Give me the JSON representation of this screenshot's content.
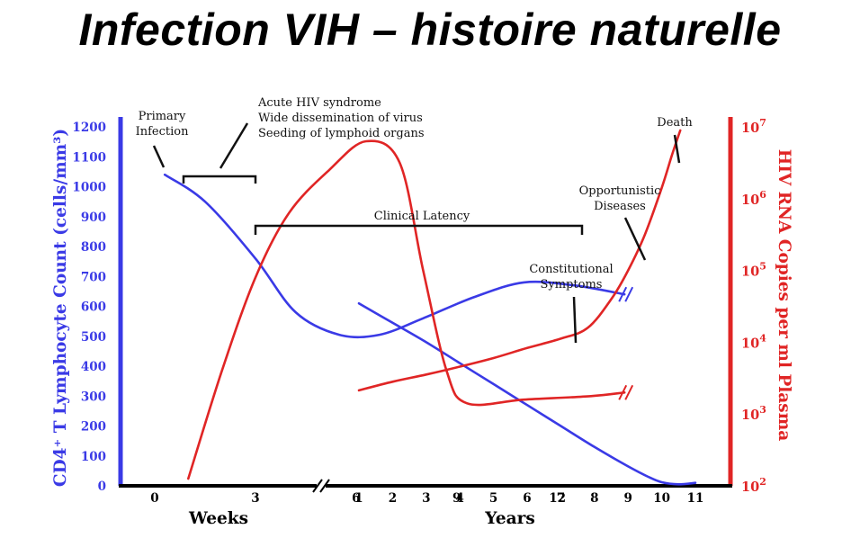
{
  "slide": {
    "title": "Infection VIH – histoire naturelle"
  },
  "chart_data": {
    "type": "line",
    "title": "Infection VIH – histoire naturelle",
    "colors": {
      "cd4": "#3a3ae6",
      "rna": "#e02525",
      "annotation": "#111111"
    },
    "left_axis": {
      "label": "CD4⁺ T Lymphocyte Count (cells/mm³)",
      "ylim": [
        0,
        1200
      ],
      "ticks": [
        "0",
        "100",
        "200",
        "300",
        "400",
        "500",
        "600",
        "700",
        "800",
        "900",
        "1000",
        "1100",
        "1200"
      ]
    },
    "right_axis": {
      "label": "HIV RNA Copies per ml Plasma",
      "scale": "log10",
      "ylim": [
        2,
        7
      ],
      "ticks": [
        {
          "base": "10",
          "exp": "2"
        },
        {
          "base": "10",
          "exp": "3"
        },
        {
          "base": "10",
          "exp": "4"
        },
        {
          "base": "10",
          "exp": "5"
        },
        {
          "base": "10",
          "exp": "6"
        },
        {
          "base": "10",
          "exp": "7"
        }
      ]
    },
    "x_axis": {
      "weeks": {
        "label": "Weeks",
        "ticks": [
          "0",
          "3",
          "6",
          "9",
          "12"
        ],
        "values": [
          0,
          3,
          6,
          9,
          12
        ]
      },
      "years": {
        "label": "Years",
        "ticks": [
          "1",
          "2",
          "3",
          "4",
          "5",
          "6",
          "7",
          "8",
          "9",
          "10",
          "11"
        ],
        "values": [
          1,
          2,
          3,
          4,
          5,
          6,
          7,
          8,
          9,
          10,
          11
        ]
      }
    },
    "series": [
      {
        "name": "CD4+ T Lymphocyte Count",
        "axis": "left",
        "weeks": [
          [
            0.3,
            1040
          ],
          [
            1.5,
            950
          ],
          [
            3,
            760
          ],
          [
            4.2,
            580
          ],
          [
            5.5,
            505
          ],
          [
            6.7,
            505
          ],
          [
            8,
            560
          ],
          [
            9.5,
            630
          ],
          [
            11,
            680
          ],
          [
            12.5,
            670
          ],
          [
            14,
            640
          ]
        ],
        "years": [
          [
            1,
            610
          ],
          [
            2,
            545
          ],
          [
            3,
            480
          ],
          [
            4,
            410
          ],
          [
            5,
            340
          ],
          [
            6,
            270
          ],
          [
            7,
            200
          ],
          [
            8,
            130
          ],
          [
            9,
            65
          ],
          [
            9.6,
            30
          ],
          [
            10,
            12
          ],
          [
            10.5,
            5
          ],
          [
            11,
            10
          ]
        ]
      },
      {
        "name": "HIV RNA Copies per ml Plasma",
        "axis": "right",
        "weeks": [
          [
            1,
            2.1
          ],
          [
            2,
            3.6
          ],
          [
            3,
            4.9
          ],
          [
            4,
            5.8
          ],
          [
            5.2,
            6.4
          ],
          [
            6.3,
            6.8
          ],
          [
            7.3,
            6.5
          ],
          [
            8,
            5.0
          ],
          [
            8.7,
            3.6
          ],
          [
            9.3,
            3.15
          ],
          [
            11,
            3.2
          ],
          [
            13,
            3.25
          ],
          [
            14,
            3.3
          ]
        ],
        "years": [
          [
            1,
            3.33
          ],
          [
            2,
            3.45
          ],
          [
            3,
            3.55
          ],
          [
            4,
            3.66
          ],
          [
            5,
            3.78
          ],
          [
            6,
            3.92
          ],
          [
            7,
            4.05
          ],
          [
            7.8,
            4.2
          ],
          [
            8.5,
            4.6
          ],
          [
            9,
            5.0
          ],
          [
            9.5,
            5.5
          ],
          [
            10,
            6.15
          ],
          [
            10.3,
            6.6
          ],
          [
            10.55,
            6.95
          ]
        ]
      }
    ],
    "annotations": {
      "primary_infection": [
        "Primary",
        "Infection"
      ],
      "acute_syndrome": [
        "Acute HIV syndrome",
        "Wide dissemination of virus",
        "Seeding of lymphoid organs"
      ],
      "clinical_latency": "Clinical Latency",
      "constitutional": [
        "Constitutional",
        "Symptoms"
      ],
      "opportunistic": [
        "Opportunistic",
        "Diseases"
      ],
      "death": "Death"
    }
  }
}
